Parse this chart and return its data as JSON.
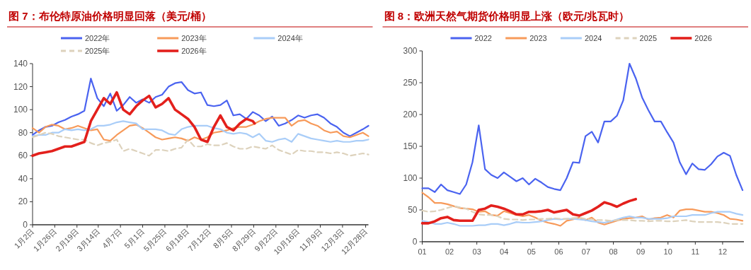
{
  "chart_data": [
    {
      "type": "line",
      "title": "图 7：布伦特原油价格明显回落（美元/桶）",
      "legend": "top",
      "x": [
        "--01-02",
        "--01-09",
        "--01-16",
        "--01-23",
        "--01-30",
        "--02-06",
        "--02-13",
        "--02-20",
        "--02-27",
        "--03-06",
        "--03-13",
        "--03-20",
        "--03-27",
        "--04-03",
        "--04-10",
        "--04-17",
        "--04-24",
        "--05-01",
        "--05-08",
        "--05-15",
        "--05-22",
        "--05-29",
        "--06-05",
        "--06-12",
        "--06-19",
        "--06-26",
        "--07-03",
        "--07-10",
        "--07-17",
        "--07-24",
        "--07-31",
        "--08-07",
        "--08-14",
        "--08-21",
        "--08-28",
        "--09-04",
        "--09-11",
        "--09-18",
        "--09-25",
        "--10-02",
        "--10-09",
        "--10-16",
        "--10-23",
        "--10-30",
        "--11-06",
        "--11-13",
        "--11-20",
        "--11-27",
        "--12-04",
        "--12-11",
        "--12-18",
        "--12-25",
        "--12-31"
      ],
      "xlim": [
        "--01-02",
        "--12-31"
      ],
      "xticks": [
        {
          "value": "--01-02",
          "label": "1月2日"
        },
        {
          "value": "--01-26",
          "label": "1月26日"
        },
        {
          "value": "--02-19",
          "label": "2月19日"
        },
        {
          "value": "--03-14",
          "label": "3月14日"
        },
        {
          "value": "--04-07",
          "label": "4月7日"
        },
        {
          "value": "--05-01",
          "label": "5月1日"
        },
        {
          "value": "--05-25",
          "label": "5月25日"
        },
        {
          "value": "--06-18",
          "label": "6月18日"
        },
        {
          "value": "--07-12",
          "label": "7月12日"
        },
        {
          "value": "--08-05",
          "label": "8月5日"
        },
        {
          "value": "--08-29",
          "label": "8月29日"
        },
        {
          "value": "--09-22",
          "label": "9月22日"
        },
        {
          "value": "--10-16",
          "label": "10月16日"
        },
        {
          "value": "--11-09",
          "label": "11月9日"
        },
        {
          "value": "--12-03",
          "label": "12月3日"
        },
        {
          "value": "--12-28",
          "label": "12月28日"
        }
      ],
      "ylim": [
        0,
        140
      ],
      "yticks": [
        0,
        20,
        40,
        60,
        80,
        100,
        120,
        140
      ],
      "series": [
        {
          "name": "2022年",
          "color": "#4a63f0",
          "values": [
            78,
            82,
            85,
            86,
            89,
            91,
            94,
            96,
            99,
            127,
            110,
            103,
            114,
            99,
            104,
            111,
            106,
            109,
            106,
            111,
            113,
            120,
            123,
            124,
            117,
            114,
            115,
            104,
            103,
            104,
            108,
            95,
            96,
            92,
            98,
            95,
            90,
            94,
            86,
            88,
            91,
            95,
            93,
            95,
            96,
            93,
            88,
            85,
            80,
            77,
            80,
            83,
            86
          ]
        },
        {
          "name": "2023年",
          "color": "#f79a5a",
          "values": [
            84,
            80,
            85,
            87,
            86,
            83,
            84,
            86,
            84,
            82,
            83,
            74,
            73,
            78,
            82,
            86,
            87,
            84,
            80,
            76,
            74,
            75,
            76,
            75,
            73,
            76,
            74,
            76,
            80,
            81,
            82,
            84,
            85,
            85,
            87,
            90,
            92,
            93,
            93,
            93,
            86,
            90,
            91,
            88,
            86,
            82,
            80,
            81,
            77,
            76,
            78,
            80,
            77
          ]
        },
        {
          "name": "2024年",
          "color": "#a9cdf8",
          "values": [
            77,
            78,
            78,
            80,
            80,
            83,
            82,
            83,
            82,
            83,
            86,
            86,
            87,
            89,
            90,
            89,
            88,
            83,
            83,
            83,
            82,
            79,
            78,
            83,
            85,
            86,
            86,
            86,
            84,
            83,
            80,
            79,
            80,
            79,
            76,
            79,
            73,
            72,
            74,
            75,
            72,
            79,
            77,
            75,
            74,
            73,
            72,
            73,
            72,
            72,
            73,
            73,
            74
          ]
        },
        {
          "name": "2025年",
          "color": "#ddd2bc",
          "line_style": "dashed",
          "values": [
            76,
            78,
            80,
            79,
            77,
            76,
            75,
            74,
            74,
            71,
            69,
            71,
            72,
            74,
            64,
            66,
            64,
            62,
            60,
            65,
            65,
            64,
            66,
            67,
            74,
            68,
            68,
            70,
            69,
            69,
            71,
            68,
            66,
            66,
            68,
            67,
            66,
            69,
            65,
            63,
            61,
            65,
            64,
            64,
            63,
            63,
            62,
            63,
            62,
            60,
            61,
            62,
            61
          ]
        },
        {
          "name": "2026年",
          "color": "#e3201c",
          "x": [
            "--01-02",
            "--01-09",
            "--01-16",
            "--01-23",
            "--01-30",
            "--02-06",
            "--02-13",
            "--02-20",
            "--02-27",
            "--03-06",
            "--03-13",
            "--03-20",
            "--03-27",
            "--04-03",
            "--04-10",
            "--04-17",
            "--04-24",
            "--05-01",
            "--05-08",
            "--05-15",
            "--05-22",
            "--05-29",
            "--06-05",
            "--06-12",
            "--06-19",
            "--06-26",
            "--07-03",
            "--07-10",
            "--07-17",
            "--07-24",
            "--07-31",
            "--08-07",
            "--08-14",
            "--08-21",
            "--08-28",
            "--08-30"
          ],
          "values": [
            60,
            62,
            63,
            64,
            66,
            68,
            68,
            70,
            72,
            90,
            100,
            110,
            105,
            115,
            100,
            96,
            103,
            108,
            112,
            102,
            105,
            110,
            100,
            96,
            92,
            85,
            74,
            72,
            85,
            95,
            85,
            82,
            88,
            92,
            90,
            88
          ]
        }
      ]
    },
    {
      "type": "line",
      "title": "图 8：欧洲天然气期货价格明显上涨（欧元/兆瓦时）",
      "legend": "top",
      "x": [
        1,
        1.23,
        1.46,
        1.69,
        1.92,
        2.15,
        2.38,
        2.61,
        2.84,
        3.07,
        3.3,
        3.53,
        3.76,
        3.99,
        4.22,
        4.45,
        4.68,
        4.91,
        5.14,
        5.37,
        5.6,
        5.83,
        6.06,
        6.29,
        6.52,
        6.75,
        6.98,
        7.21,
        7.44,
        7.67,
        7.9,
        8.13,
        8.36,
        8.59,
        8.82,
        9.05,
        9.28,
        9.51,
        9.74,
        9.97,
        10.2,
        10.43,
        10.66,
        10.89,
        11.12,
        11.35,
        11.58,
        11.81,
        12.04,
        12.27,
        12.5,
        12.73
      ],
      "xlim": [
        1,
        12.78
      ],
      "xticks": [
        {
          "value": 1,
          "label": "01"
        },
        {
          "value": 2,
          "label": "02"
        },
        {
          "value": 3,
          "label": "03"
        },
        {
          "value": 4,
          "label": "04"
        },
        {
          "value": 5,
          "label": "05"
        },
        {
          "value": 6,
          "label": "06"
        },
        {
          "value": 7,
          "label": "07"
        },
        {
          "value": 8,
          "label": "08"
        },
        {
          "value": 9,
          "label": "09"
        },
        {
          "value": 10,
          "label": "10"
        },
        {
          "value": 11,
          "label": "11"
        },
        {
          "value": 12,
          "label": "12"
        }
      ],
      "ylim": [
        0,
        300
      ],
      "yticks": [
        0,
        50,
        100,
        150,
        200,
        250,
        300
      ],
      "series": [
        {
          "name": "2022",
          "color": "#4a63f0",
          "values": [
            84,
            84,
            78,
            90,
            81,
            78,
            75,
            90,
            125,
            183,
            114,
            105,
            100,
            109,
            102,
            95,
            100,
            90,
            99,
            93,
            86,
            83,
            81,
            100,
            125,
            124,
            166,
            173,
            156,
            189,
            189,
            198,
            222,
            280,
            257,
            227,
            207,
            189,
            189,
            172,
            156,
            125,
            106,
            123,
            114,
            113,
            122,
            134,
            140,
            135,
            105,
            81
          ]
        },
        {
          "name": "2023",
          "color": "#f79a5a",
          "values": [
            77,
            70,
            61,
            61,
            59,
            56,
            53,
            52,
            51,
            47,
            48,
            42,
            41,
            48,
            45,
            42,
            40,
            42,
            38,
            33,
            30,
            28,
            25,
            33,
            35,
            38,
            34,
            38,
            30,
            27,
            30,
            33,
            36,
            37,
            38,
            40,
            35,
            37,
            38,
            42,
            38,
            49,
            51,
            51,
            49,
            47,
            47,
            45,
            42,
            36,
            35,
            33
          ]
        },
        {
          "name": "2024",
          "color": "#a9cdf8",
          "values": [
            33,
            31,
            28,
            28,
            30,
            28,
            25,
            25,
            25,
            26,
            26,
            28,
            28,
            26,
            28,
            31,
            30,
            30,
            31,
            32,
            34,
            36,
            35,
            36,
            36,
            35,
            34,
            32,
            31,
            30,
            32,
            35,
            38,
            40,
            38,
            38,
            36,
            36,
            36,
            37,
            40,
            40,
            40,
            42,
            42,
            42,
            45,
            47,
            47,
            47,
            44,
            42
          ]
        },
        {
          "name": "2025",
          "color": "#ddd2bc",
          "line_style": "dashed",
          "values": [
            49,
            47,
            48,
            50,
            53,
            56,
            54,
            52,
            47,
            43,
            42,
            42,
            40,
            36,
            35,
            35,
            34,
            35,
            35,
            36,
            36,
            37,
            36,
            36,
            37,
            38,
            36,
            35,
            34,
            34,
            33,
            34,
            34,
            34,
            33,
            33,
            32,
            33,
            33,
            32,
            32,
            33,
            34,
            32,
            31,
            31,
            31,
            31,
            30,
            28,
            28,
            28
          ]
        },
        {
          "name": "2026",
          "color": "#e3201c",
          "x": [
            1,
            1.23,
            1.46,
            1.69,
            1.92,
            2.15,
            2.38,
            2.61,
            2.84,
            3.07,
            3.3,
            3.53,
            3.76,
            3.99,
            4.22,
            4.45,
            4.68,
            4.91,
            5.14,
            5.37,
            5.6,
            5.83,
            6.06,
            6.29,
            6.52,
            6.75,
            6.98,
            7.21,
            7.44,
            7.67,
            7.9,
            8.13,
            8.36,
            8.59,
            8.82
          ],
          "values": [
            29,
            29,
            32,
            37,
            39,
            34,
            33,
            33,
            33,
            50,
            52,
            57,
            55,
            52,
            48,
            43,
            43,
            47,
            47,
            48,
            50,
            46,
            48,
            50,
            43,
            41,
            45,
            49,
            55,
            62,
            59,
            55,
            60,
            64,
            67
          ]
        }
      ]
    }
  ]
}
